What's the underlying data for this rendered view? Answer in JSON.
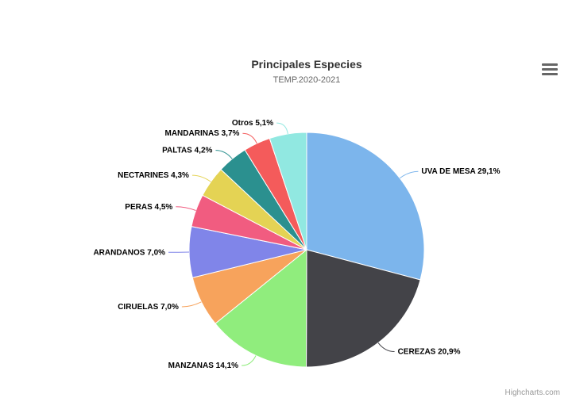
{
  "chart_data": {
    "type": "pie",
    "title": "Principales Especies",
    "subtitle": "TEMP.2020-2021",
    "series": [
      {
        "data": [
          {
            "name": "UVA DE MESA",
            "value": 29.1,
            "label": "UVA DE MESA 29,1%",
            "color": "#7cb5ec"
          },
          {
            "name": "CEREZAS",
            "value": 20.9,
            "label": "CEREZAS 20,9%",
            "color": "#434348"
          },
          {
            "name": "MANZANAS",
            "value": 14.1,
            "label": "MANZANAS 14,1%",
            "color": "#90ed7d"
          },
          {
            "name": "CIRUELAS",
            "value": 7.0,
            "label": "CIRUELAS 7,0%",
            "color": "#f7a35c"
          },
          {
            "name": "ARANDANOS",
            "value": 7.0,
            "label": "ARANDANOS 7,0%",
            "color": "#8085e9"
          },
          {
            "name": "PERAS",
            "value": 4.5,
            "label": "PERAS 4,5%",
            "color": "#f15c80"
          },
          {
            "name": "NECTARINES",
            "value": 4.3,
            "label": "NECTARINES 4,3%",
            "color": "#e4d354"
          },
          {
            "name": "PALTAS",
            "value": 4.2,
            "label": "PALTAS 4,2%",
            "color": "#2b908f"
          },
          {
            "name": "MANDARINAS",
            "value": 3.7,
            "label": "MANDARINAS 3,7%",
            "color": "#f45b5b"
          },
          {
            "name": "Otros",
            "value": 5.1,
            "label": "Otros 5,1%",
            "color": "#91e8e1"
          }
        ]
      }
    ]
  },
  "ui": {
    "menu_icon": "hamburger-menu-icon",
    "credits": "Highcharts.com"
  }
}
